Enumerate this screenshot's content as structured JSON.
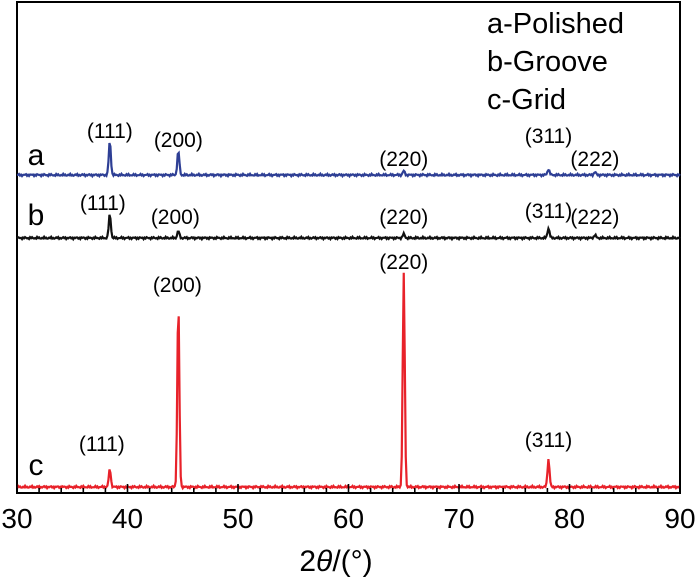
{
  "chart_data": {
    "type": "line",
    "xlabel_prefix": "2",
    "xlabel_symbol": "θ",
    "xlabel_suffix": "/(°)",
    "xlim": [
      30,
      90
    ],
    "x_ticks": [
      30,
      40,
      50,
      60,
      70,
      80,
      90
    ],
    "grid": false,
    "legend": [
      "a-Polished",
      "b-Groove",
      "c-Grid"
    ],
    "legend_position": "top-right",
    "series": [
      {
        "label": "a",
        "color": "#2e3f95",
        "peaks": [
          {
            "x": 38.4,
            "height": 34,
            "label": "(111)"
          },
          {
            "x": 44.6,
            "height": 24,
            "label": "(200)"
          },
          {
            "x": 65.0,
            "height": 4,
            "label": "(220)"
          },
          {
            "x": 78.1,
            "height": 6,
            "label": "(311)"
          },
          {
            "x": 82.3,
            "height": 3,
            "label": "(222)"
          }
        ]
      },
      {
        "label": "b",
        "color": "#111111",
        "peaks": [
          {
            "x": 38.4,
            "height": 24,
            "label": "(111)"
          },
          {
            "x": 44.6,
            "height": 7,
            "label": "(200)"
          },
          {
            "x": 65.0,
            "height": 4,
            "label": "(220)"
          },
          {
            "x": 78.1,
            "height": 10,
            "label": "(311)"
          },
          {
            "x": 82.3,
            "height": 3,
            "label": "(222)"
          }
        ]
      },
      {
        "label": "c",
        "color": "#e8222a",
        "peaks": [
          {
            "x": 38.4,
            "height": 18,
            "label": "(111)"
          },
          {
            "x": 44.6,
            "height": 184,
            "label": "(200)"
          },
          {
            "x": 65.0,
            "height": 213,
            "label": "(220)"
          },
          {
            "x": 78.1,
            "height": 28,
            "label": "(311)"
          }
        ]
      }
    ]
  }
}
